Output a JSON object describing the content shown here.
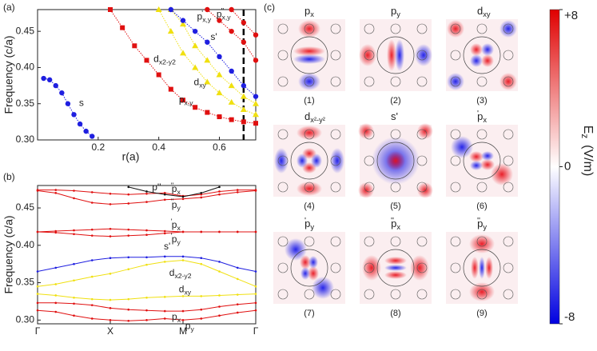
{
  "panel_labels": [
    "(a)",
    "(b)",
    "(c)"
  ],
  "chart_data": [
    {
      "type": "line",
      "xlabel": "r(a)",
      "ylabel": "Frequency (c/a)",
      "xlim": [
        0,
        0.72
      ],
      "xticks": [
        0.2,
        0.4,
        0.6
      ],
      "ylim": [
        0.3,
        0.48
      ],
      "yticks": [
        {
          "value": 0.3,
          "label": "0.30"
        },
        0.35,
        {
          "value": 0.4,
          "label": "0.40"
        },
        0.45
      ],
      "marker_line": 0.68,
      "series": [
        {
          "name": "s",
          "color": "#1f1fe0",
          "marker": "circle",
          "x": [
            0.02,
            0.04,
            0.06,
            0.08,
            0.1,
            0.12,
            0.14,
            0.16,
            0.18
          ],
          "values": [
            0.385,
            0.383,
            0.375,
            0.365,
            0.35,
            0.335,
            0.322,
            0.312,
            0.305
          ]
        },
        {
          "name": "p",
          "sub": "x,y",
          "color": "#e01010",
          "marker": "square",
          "x": [
            0.24,
            0.28,
            0.32,
            0.36,
            0.4,
            0.44,
            0.48,
            0.52,
            0.56,
            0.6,
            0.64,
            0.68,
            0.72
          ],
          "values": [
            0.48,
            0.455,
            0.43,
            0.41,
            0.39,
            0.37,
            0.355,
            0.345,
            0.338,
            0.332,
            0.328,
            0.325,
            0.323
          ]
        },
        {
          "name": "d",
          "sub": "x2-y2",
          "color": "#f0e010",
          "marker": "triangle",
          "x": [
            0.4,
            0.44,
            0.48,
            0.52,
            0.56,
            0.6,
            0.64,
            0.68,
            0.72
          ],
          "values": [
            0.48,
            0.45,
            0.42,
            0.4,
            0.38,
            0.365,
            0.352,
            0.342,
            0.335
          ]
        },
        {
          "name": "d",
          "sub": "xy",
          "color": "#f0e010",
          "marker": "triangle",
          "x": [
            0.44,
            0.48,
            0.52,
            0.56,
            0.6,
            0.64,
            0.68,
            0.72
          ],
          "values": [
            0.48,
            0.46,
            0.43,
            0.41,
            0.39,
            0.375,
            0.36,
            0.35
          ]
        },
        {
          "name": "s'",
          "color": "#1f1fe0",
          "marker": "circle",
          "x": [
            0.44,
            0.48,
            0.52,
            0.56,
            0.6,
            0.64,
            0.68,
            0.72
          ],
          "values": [
            0.48,
            0.465,
            0.45,
            0.435,
            0.415,
            0.395,
            0.375,
            0.36
          ]
        },
        {
          "name": "p",
          "sup": "'",
          "sub": "x,y",
          "color": "#e01010",
          "marker": "circle",
          "x": [
            0.56,
            0.6,
            0.64,
            0.68,
            0.72
          ],
          "values": [
            0.48,
            0.465,
            0.45,
            0.435,
            0.41
          ]
        },
        {
          "name": "p",
          "sup": "''",
          "sub": "x,y",
          "color": "#e01010",
          "marker": "circle",
          "x": [
            0.64,
            0.68,
            0.72
          ],
          "values": [
            0.48,
            0.462,
            0.445
          ]
        }
      ]
    },
    {
      "type": "line",
      "ylabel": "Frequency (c/a)",
      "xlim": [
        0,
        3
      ],
      "xticks": [
        {
          "value": 0,
          "label": "Γ"
        },
        {
          "value": 1,
          "label": "X"
        },
        {
          "value": 2,
          "label": "M"
        },
        {
          "value": 3,
          "label": "Γ"
        }
      ],
      "ylim": [
        0.295,
        0.48
      ],
      "yticks": [
        {
          "value": 0.3,
          "label": "0.30"
        },
        0.35,
        {
          "value": 0.4,
          "label": "0.40"
        },
        0.45
      ],
      "x": [
        0,
        0.25,
        0.5,
        0.75,
        1,
        1.25,
        1.5,
        1.75,
        2,
        2.25,
        2.5,
        2.75,
        3
      ],
      "series": [
        {
          "name": "p",
          "sub": "y",
          "color": "#e01010",
          "values": [
            0.313,
            0.311,
            0.306,
            0.302,
            0.3,
            0.299,
            0.3,
            0.302,
            0.3,
            0.302,
            0.306,
            0.31,
            0.313
          ]
        },
        {
          "name": "p",
          "sub": "x",
          "color": "#e01010",
          "values": [
            0.323,
            0.323,
            0.322,
            0.32,
            0.316,
            0.314,
            0.313,
            0.312,
            0.312,
            0.314,
            0.318,
            0.321,
            0.323
          ]
        },
        {
          "name": "d",
          "sub": "xy",
          "color": "#f0e010",
          "values": [
            0.335,
            0.333,
            0.33,
            0.328,
            0.327,
            0.328,
            0.33,
            0.331,
            0.332,
            0.332,
            0.333,
            0.334,
            0.335
          ]
        },
        {
          "name": "d",
          "sub": "x2-y2",
          "color": "#f0e010",
          "values": [
            0.345,
            0.348,
            0.353,
            0.358,
            0.362,
            0.368,
            0.374,
            0.378,
            0.38,
            0.375,
            0.365,
            0.355,
            0.345
          ]
        },
        {
          "name": "s'",
          "color": "#1f1fe0",
          "values": [
            0.365,
            0.37,
            0.375,
            0.38,
            0.383,
            0.384,
            0.384,
            0.385,
            0.385,
            0.383,
            0.378,
            0.37,
            0.365
          ]
        },
        {
          "name": "p",
          "sup": "'",
          "sub": "y",
          "color": "#e01010",
          "values": [
            0.418,
            0.417,
            0.415,
            0.413,
            0.412,
            0.413,
            0.414,
            0.416,
            0.418,
            0.418,
            0.418,
            0.418,
            0.418
          ]
        },
        {
          "name": "p",
          "sup": "'",
          "sub": "x",
          "color": "#e01010",
          "values": [
            0.418,
            0.419,
            0.42,
            0.421,
            0.422,
            0.421,
            0.42,
            0.419,
            0.418,
            0.418,
            0.418,
            0.418,
            0.418
          ]
        },
        {
          "name": "p",
          "sup": "''",
          "sub": "y",
          "color": "#e01010",
          "values": [
            0.473,
            0.47,
            0.463,
            0.457,
            0.455,
            0.456,
            0.458,
            0.461,
            0.462,
            0.464,
            0.468,
            0.471,
            0.473
          ]
        },
        {
          "name": "p",
          "sup": "''",
          "sub": "x",
          "color": "#e01010",
          "values": [
            0.474,
            0.474,
            0.473,
            0.471,
            0.469,
            0.468,
            0.469,
            0.47,
            0.466,
            0.468,
            0.472,
            0.474,
            0.474
          ]
        },
        {
          "name": "p''",
          "color": "#111111",
          "values": [
            null,
            null,
            null,
            null,
            null,
            0.478,
            0.472,
            0.468,
            0.465,
            0.47,
            0.478,
            null,
            null
          ]
        }
      ]
    }
  ],
  "field_maps": {
    "tiles": [
      {
        "name": "p",
        "sub": "x",
        "caption": "(1)"
      },
      {
        "name": "p",
        "sub": "y",
        "caption": "(2)"
      },
      {
        "name": "d",
        "sub": "xy",
        "caption": "(3)"
      },
      {
        "name": "d",
        "sub": "x²-y²",
        "caption": "(4)"
      },
      {
        "name": "s'",
        "caption": "(5)"
      },
      {
        "name": "p",
        "sub": "x",
        "sup": "'",
        "caption": "(6)"
      },
      {
        "name": "p",
        "sub": "y",
        "sup": "'",
        "caption": "(7)"
      },
      {
        "name": "p",
        "sub": "x",
        "sup": "''",
        "caption": "(8)"
      },
      {
        "name": "p",
        "sub": "y",
        "sup": "''",
        "caption": "(9)"
      }
    ],
    "colorbar": {
      "lim": [
        -8,
        8
      ],
      "ticks": [
        {
          "value": 8,
          "label": "+8"
        },
        0,
        -8
      ],
      "name": "E",
      "sub": "z",
      "unit": "(V/m)"
    }
  }
}
